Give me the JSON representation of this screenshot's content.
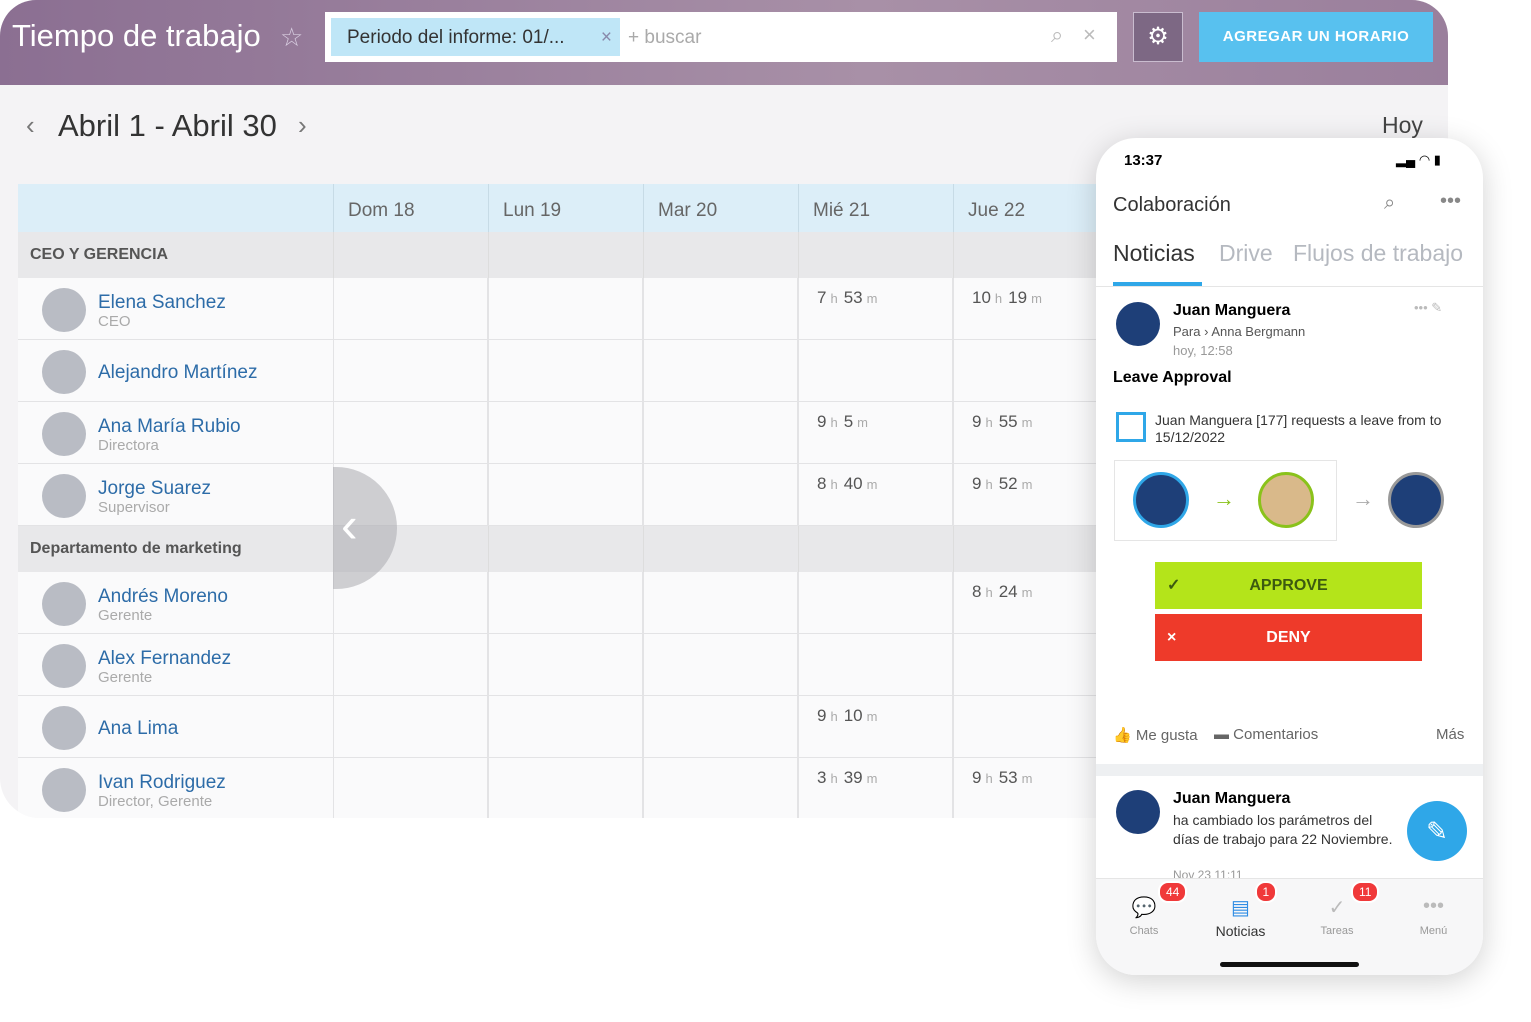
{
  "header": {
    "title": "Tiempo de trabajo",
    "filter": "Periodo del informe: 01/...",
    "search_placeholder": "+ buscar",
    "add_button": "AGREGAR UN HORARIO"
  },
  "period": {
    "label": "Abril 1 - Abril 30",
    "today": "Hoy"
  },
  "units": {
    "hours": "h",
    "minutes": "m"
  },
  "days": [
    "Dom 18",
    "Lun 19",
    "Mar 20",
    "Mié 21",
    "Jue 22"
  ],
  "groups": [
    {
      "name": "CEO Y GERENCIA",
      "people": [
        {
          "name": "Elena Sanchez",
          "role": "CEO",
          "times": [
            null,
            null,
            null,
            {
              "h": 7,
              "m": 53
            },
            {
              "h": 10,
              "m": 19
            }
          ]
        },
        {
          "name": "Alejandro Martínez",
          "times": [
            null,
            null,
            null,
            null,
            null
          ]
        },
        {
          "name": "Ana María Rubio",
          "role": "Directora",
          "times": [
            null,
            null,
            null,
            {
              "h": 9,
              "m": 5
            },
            {
              "h": 9,
              "m": 55
            }
          ]
        },
        {
          "name": "Jorge Suarez",
          "role": "Supervisor",
          "times": [
            null,
            null,
            null,
            {
              "h": 8,
              "m": 40
            },
            {
              "h": 9,
              "m": 52
            }
          ]
        }
      ]
    },
    {
      "name": "Departamento de marketing",
      "people": [
        {
          "name": "Andrés Moreno",
          "role": "Gerente",
          "times": [
            null,
            null,
            null,
            null,
            {
              "h": 8,
              "m": 24
            }
          ]
        },
        {
          "name": "Alex Fernandez",
          "role": "Gerente",
          "times": [
            null,
            null,
            null,
            null,
            null
          ]
        },
        {
          "name": "Ana Lima",
          "times": [
            null,
            null,
            null,
            {
              "h": 9,
              "m": 10
            },
            null
          ]
        },
        {
          "name": "Ivan Rodriguez",
          "role": "Director, Gerente",
          "times": [
            null,
            null,
            null,
            {
              "h": 3,
              "m": 39
            },
            {
              "h": 9,
              "m": 53
            }
          ]
        }
      ]
    }
  ],
  "phone": {
    "clock": "13:37",
    "app_title": "Colaboración",
    "tabs": [
      "Noticias",
      "Drive",
      "Flujos de trabajo"
    ],
    "post1": {
      "author": "Juan Manguera",
      "to_label": "Para",
      "recipient": "Anna Bergmann",
      "time": "hoy, 12:58",
      "title": "Leave Approval",
      "request": "Juan Manguera [177] requests a leave from to 15/12/2022",
      "approve": "APPROVE",
      "deny": "DENY",
      "actions": [
        "Me gusta",
        "Comentarios",
        "Más"
      ]
    },
    "post2": {
      "author": "Juan Manguera",
      "text": "ha cambiado los parámetros del días de trabajo para 22 Noviembre.",
      "time": "Nov 23 11:11"
    },
    "nav": [
      {
        "label": "Chats",
        "badge": 44
      },
      {
        "label": "Noticias",
        "badge": 1
      },
      {
        "label": "Tareas",
        "badge": 11
      },
      {
        "label": "Menú"
      }
    ]
  }
}
